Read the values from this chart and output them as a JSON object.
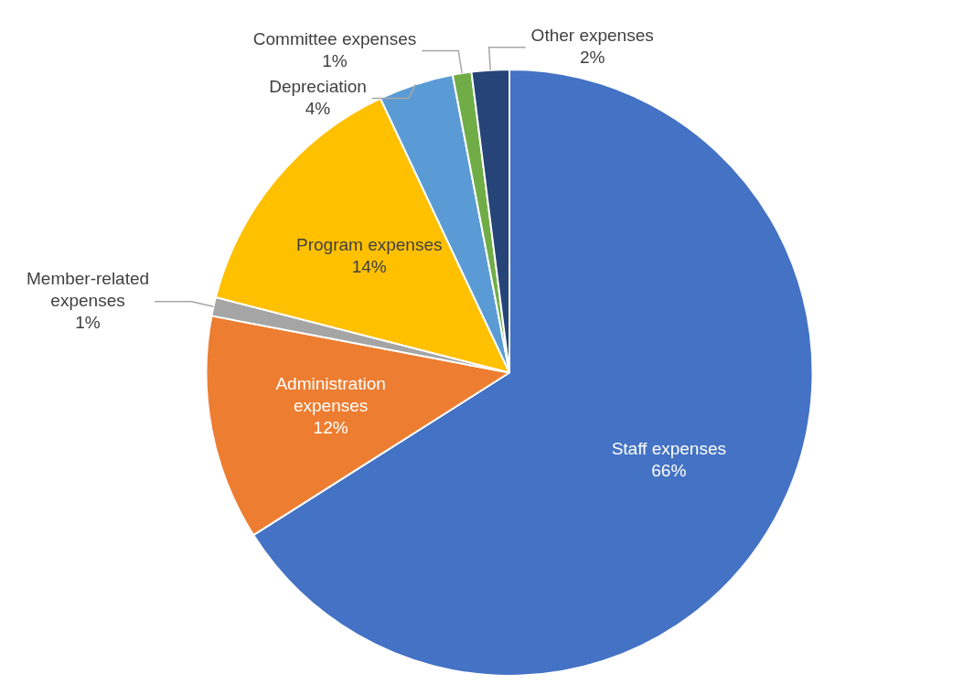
{
  "chart_data": {
    "type": "pie",
    "categories": [
      "Staff expenses",
      "Administration expenses",
      "Member-related expenses",
      "Program expenses",
      "Depreciation",
      "Committee expenses",
      "Other expenses"
    ],
    "values": [
      66,
      12,
      1,
      14,
      4,
      1,
      2
    ],
    "colors": [
      "#4472c4",
      "#ed7d31",
      "#a5a5a5",
      "#ffc000",
      "#5b9bd5",
      "#70ad47",
      "#264478"
    ],
    "value_labels": [
      "66%",
      "12%",
      "1%",
      "14%",
      "4%",
      "1%",
      "2%"
    ],
    "legend": false
  }
}
